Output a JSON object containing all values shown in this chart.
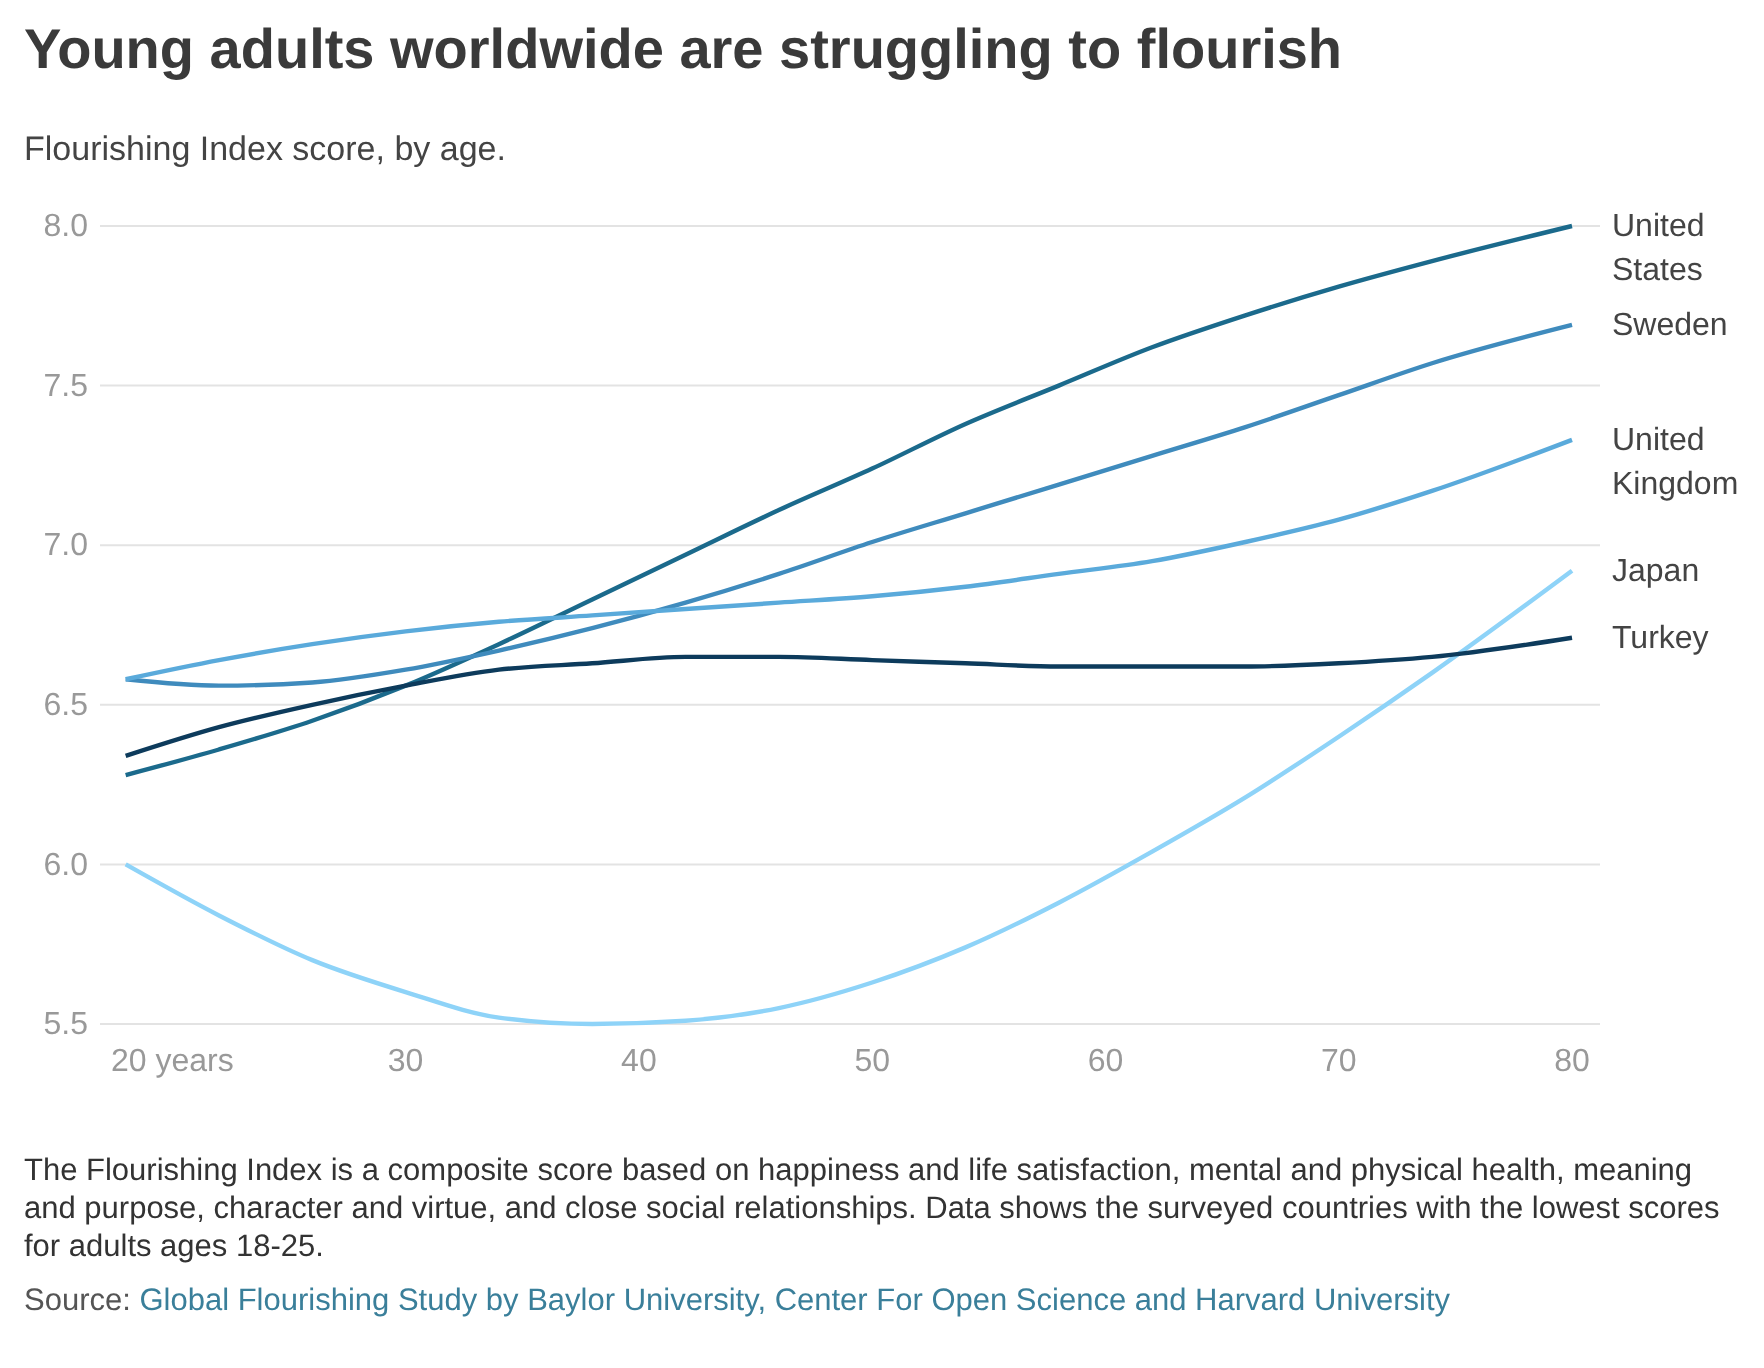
{
  "chart_data": {
    "type": "line",
    "title": "Young adults worldwide are struggling to flourish",
    "subtitle": "Flourishing Index score, by age.",
    "x": [
      18,
      22,
      26,
      30,
      34,
      38,
      42,
      46,
      50,
      54,
      58,
      62,
      66,
      70,
      74,
      80
    ],
    "xlim": [
      16.9,
      81.2
    ],
    "xticks": [
      {
        "value": 20,
        "label": "20 years"
      },
      30,
      40,
      50,
      60,
      70,
      80
    ],
    "ylim": [
      5.5,
      8.0
    ],
    "yticks": [
      5.5,
      {
        "value": 6,
        "label": "6.0"
      },
      6.5,
      {
        "value": 7,
        "label": "7.0"
      },
      7.5,
      {
        "value": 8,
        "label": "8.0"
      }
    ],
    "grid": "y",
    "legend": false,
    "marker": "none",
    "line_style": "solid",
    "series": [
      {
        "name": "United States",
        "color": "#1b6a8c",
        "values": [
          6.28,
          6.36,
          6.45,
          6.56,
          6.69,
          6.83,
          6.97,
          7.11,
          7.24,
          7.38,
          7.5,
          7.62,
          7.72,
          7.81,
          7.89,
          8.0
        ]
      },
      {
        "name": "Sweden",
        "color": "#3f8bbd",
        "values": [
          6.58,
          6.56,
          6.57,
          6.61,
          6.67,
          6.74,
          6.82,
          6.91,
          7.01,
          7.1,
          7.19,
          7.28,
          7.37,
          7.47,
          7.57,
          7.69
        ]
      },
      {
        "name": "United Kingdom",
        "color": "#5aaadb",
        "values": [
          6.58,
          6.64,
          6.69,
          6.73,
          6.76,
          6.78,
          6.8,
          6.82,
          6.84,
          6.87,
          6.91,
          6.95,
          7.01,
          7.08,
          7.17,
          7.33
        ]
      },
      {
        "name": "Japan",
        "color": "#8ed3f8",
        "values": [
          6.0,
          5.84,
          5.7,
          5.6,
          5.52,
          5.5,
          5.51,
          5.55,
          5.63,
          5.74,
          5.88,
          6.04,
          6.21,
          6.4,
          6.6,
          6.92
        ]
      },
      {
        "name": "Turkey",
        "color": "#0d3b5c",
        "values": [
          6.34,
          6.43,
          6.5,
          6.56,
          6.61,
          6.63,
          6.65,
          6.65,
          6.64,
          6.63,
          6.62,
          6.62,
          6.62,
          6.63,
          6.65,
          6.71
        ]
      }
    ],
    "annotations": [
      "The Flourishing Index is a composite score based on happiness and life satisfaction, mental and physical health, meaning and purpose, character and virtue, and close social relationships. Data shows the surveyed countries with the lowest scores for adults ages 18-25.",
      "Source: Global Flourishing Study by Baylor University, Center For Open Science and Harvard University"
    ]
  }
}
